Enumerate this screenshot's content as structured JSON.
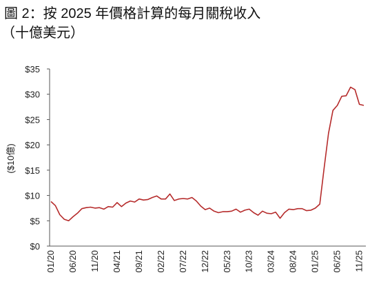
{
  "chart_data": {
    "type": "line",
    "title": "圖 2：按 2025 年價格計算的每月關稅收入",
    "subtitle": "（十億美元）",
    "y_label": "($10億)",
    "categories": [
      "01/20",
      null,
      null,
      null,
      null,
      "06/20",
      null,
      null,
      null,
      null,
      "11/20",
      null,
      null,
      null,
      null,
      "04/21",
      null,
      null,
      null,
      null,
      "09/21",
      null,
      null,
      null,
      null,
      "02/22",
      null,
      null,
      null,
      null,
      "07/22",
      null,
      null,
      null,
      null,
      "12/22",
      null,
      null,
      null,
      null,
      "05/23",
      null,
      null,
      null,
      null,
      "10/23",
      null,
      null,
      null,
      null,
      "03/24",
      null,
      null,
      null,
      null,
      "08/24",
      null,
      null,
      null,
      null,
      "01/25",
      null,
      null,
      null,
      null,
      "06/25",
      null,
      null,
      null,
      null,
      "11/25",
      null
    ],
    "series": [
      {
        "color": "#b52a2a",
        "values": [
          8.8,
          8.0,
          6.2,
          5.3,
          5.0,
          5.8,
          6.5,
          7.4,
          7.6,
          7.7,
          7.5,
          7.6,
          7.3,
          7.8,
          7.7,
          8.6,
          7.8,
          8.5,
          8.9,
          8.7,
          9.3,
          9.1,
          9.2,
          9.6,
          9.9,
          9.3,
          9.3,
          10.3,
          9.0,
          9.3,
          9.4,
          9.3,
          9.6,
          8.9,
          7.9,
          7.2,
          7.5,
          6.9,
          6.6,
          6.8,
          6.8,
          6.9,
          7.3,
          6.7,
          7.1,
          7.3,
          6.6,
          6.1,
          6.9,
          6.5,
          6.4,
          6.7,
          5.5,
          6.6,
          7.3,
          7.2,
          7.4,
          7.4,
          7.0,
          7.1,
          7.5,
          8.3,
          15.5,
          22.3,
          26.8,
          27.8,
          29.6,
          29.7,
          31.4,
          30.9,
          28.0,
          27.8
        ]
      }
    ],
    "ylim": [
      0,
      35
    ],
    "yticks": [
      {
        "value": 0,
        "label": "$0"
      },
      {
        "value": 5,
        "label": "$5"
      },
      {
        "value": 10,
        "label": "$10"
      },
      {
        "value": 15,
        "label": "$15"
      },
      {
        "value": 20,
        "label": "$20"
      },
      {
        "value": 25,
        "label": "$25"
      },
      {
        "value": 30,
        "label": "$30"
      },
      {
        "value": 35,
        "label": "$35"
      }
    ],
    "grid": false
  }
}
